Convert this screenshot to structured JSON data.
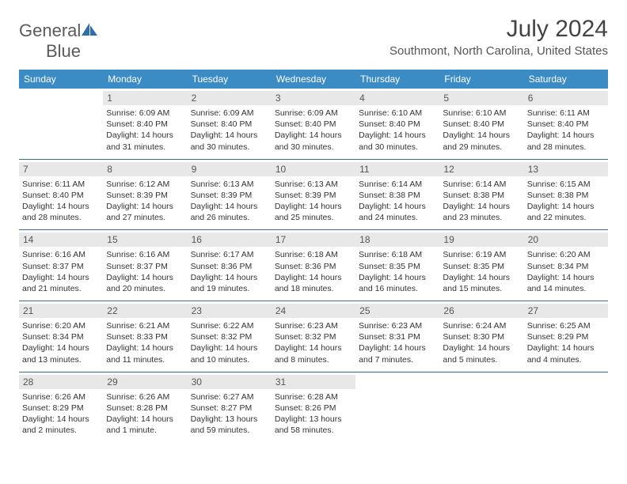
{
  "logo": {
    "text1": "General",
    "text2": "Blue"
  },
  "title": "July 2024",
  "location": "Southmont, North Carolina, United States",
  "weekdays": [
    "Sunday",
    "Monday",
    "Tuesday",
    "Wednesday",
    "Thursday",
    "Friday",
    "Saturday"
  ],
  "colors": {
    "header_bg": "#3b8bc4",
    "header_text": "#ffffff",
    "week_border": "#3b6b8f",
    "daynum_bg": "#e8e8e8",
    "daynum_text": "#555555",
    "body_text": "#333333",
    "logo_blue": "#2d6fa8"
  },
  "typography": {
    "title_fontsize": 30,
    "location_fontsize": 15,
    "weekday_fontsize": 12,
    "daynum_fontsize": 12,
    "dayinfo_fontsize": 10.5
  },
  "weeks": [
    [
      {
        "n": "",
        "sr": "",
        "ss": "",
        "dl": ""
      },
      {
        "n": "1",
        "sr": "Sunrise: 6:09 AM",
        "ss": "Sunset: 8:40 PM",
        "dl": "Daylight: 14 hours and 31 minutes."
      },
      {
        "n": "2",
        "sr": "Sunrise: 6:09 AM",
        "ss": "Sunset: 8:40 PM",
        "dl": "Daylight: 14 hours and 30 minutes."
      },
      {
        "n": "3",
        "sr": "Sunrise: 6:09 AM",
        "ss": "Sunset: 8:40 PM",
        "dl": "Daylight: 14 hours and 30 minutes."
      },
      {
        "n": "4",
        "sr": "Sunrise: 6:10 AM",
        "ss": "Sunset: 8:40 PM",
        "dl": "Daylight: 14 hours and 30 minutes."
      },
      {
        "n": "5",
        "sr": "Sunrise: 6:10 AM",
        "ss": "Sunset: 8:40 PM",
        "dl": "Daylight: 14 hours and 29 minutes."
      },
      {
        "n": "6",
        "sr": "Sunrise: 6:11 AM",
        "ss": "Sunset: 8:40 PM",
        "dl": "Daylight: 14 hours and 28 minutes."
      }
    ],
    [
      {
        "n": "7",
        "sr": "Sunrise: 6:11 AM",
        "ss": "Sunset: 8:40 PM",
        "dl": "Daylight: 14 hours and 28 minutes."
      },
      {
        "n": "8",
        "sr": "Sunrise: 6:12 AM",
        "ss": "Sunset: 8:39 PM",
        "dl": "Daylight: 14 hours and 27 minutes."
      },
      {
        "n": "9",
        "sr": "Sunrise: 6:13 AM",
        "ss": "Sunset: 8:39 PM",
        "dl": "Daylight: 14 hours and 26 minutes."
      },
      {
        "n": "10",
        "sr": "Sunrise: 6:13 AM",
        "ss": "Sunset: 8:39 PM",
        "dl": "Daylight: 14 hours and 25 minutes."
      },
      {
        "n": "11",
        "sr": "Sunrise: 6:14 AM",
        "ss": "Sunset: 8:38 PM",
        "dl": "Daylight: 14 hours and 24 minutes."
      },
      {
        "n": "12",
        "sr": "Sunrise: 6:14 AM",
        "ss": "Sunset: 8:38 PM",
        "dl": "Daylight: 14 hours and 23 minutes."
      },
      {
        "n": "13",
        "sr": "Sunrise: 6:15 AM",
        "ss": "Sunset: 8:38 PM",
        "dl": "Daylight: 14 hours and 22 minutes."
      }
    ],
    [
      {
        "n": "14",
        "sr": "Sunrise: 6:16 AM",
        "ss": "Sunset: 8:37 PM",
        "dl": "Daylight: 14 hours and 21 minutes."
      },
      {
        "n": "15",
        "sr": "Sunrise: 6:16 AM",
        "ss": "Sunset: 8:37 PM",
        "dl": "Daylight: 14 hours and 20 minutes."
      },
      {
        "n": "16",
        "sr": "Sunrise: 6:17 AM",
        "ss": "Sunset: 8:36 PM",
        "dl": "Daylight: 14 hours and 19 minutes."
      },
      {
        "n": "17",
        "sr": "Sunrise: 6:18 AM",
        "ss": "Sunset: 8:36 PM",
        "dl": "Daylight: 14 hours and 18 minutes."
      },
      {
        "n": "18",
        "sr": "Sunrise: 6:18 AM",
        "ss": "Sunset: 8:35 PM",
        "dl": "Daylight: 14 hours and 16 minutes."
      },
      {
        "n": "19",
        "sr": "Sunrise: 6:19 AM",
        "ss": "Sunset: 8:35 PM",
        "dl": "Daylight: 14 hours and 15 minutes."
      },
      {
        "n": "20",
        "sr": "Sunrise: 6:20 AM",
        "ss": "Sunset: 8:34 PM",
        "dl": "Daylight: 14 hours and 14 minutes."
      }
    ],
    [
      {
        "n": "21",
        "sr": "Sunrise: 6:20 AM",
        "ss": "Sunset: 8:34 PM",
        "dl": "Daylight: 14 hours and 13 minutes."
      },
      {
        "n": "22",
        "sr": "Sunrise: 6:21 AM",
        "ss": "Sunset: 8:33 PM",
        "dl": "Daylight: 14 hours and 11 minutes."
      },
      {
        "n": "23",
        "sr": "Sunrise: 6:22 AM",
        "ss": "Sunset: 8:32 PM",
        "dl": "Daylight: 14 hours and 10 minutes."
      },
      {
        "n": "24",
        "sr": "Sunrise: 6:23 AM",
        "ss": "Sunset: 8:32 PM",
        "dl": "Daylight: 14 hours and 8 minutes."
      },
      {
        "n": "25",
        "sr": "Sunrise: 6:23 AM",
        "ss": "Sunset: 8:31 PM",
        "dl": "Daylight: 14 hours and 7 minutes."
      },
      {
        "n": "26",
        "sr": "Sunrise: 6:24 AM",
        "ss": "Sunset: 8:30 PM",
        "dl": "Daylight: 14 hours and 5 minutes."
      },
      {
        "n": "27",
        "sr": "Sunrise: 6:25 AM",
        "ss": "Sunset: 8:29 PM",
        "dl": "Daylight: 14 hours and 4 minutes."
      }
    ],
    [
      {
        "n": "28",
        "sr": "Sunrise: 6:26 AM",
        "ss": "Sunset: 8:29 PM",
        "dl": "Daylight: 14 hours and 2 minutes."
      },
      {
        "n": "29",
        "sr": "Sunrise: 6:26 AM",
        "ss": "Sunset: 8:28 PM",
        "dl": "Daylight: 14 hours and 1 minute."
      },
      {
        "n": "30",
        "sr": "Sunrise: 6:27 AM",
        "ss": "Sunset: 8:27 PM",
        "dl": "Daylight: 13 hours and 59 minutes."
      },
      {
        "n": "31",
        "sr": "Sunrise: 6:28 AM",
        "ss": "Sunset: 8:26 PM",
        "dl": "Daylight: 13 hours and 58 minutes."
      },
      {
        "n": "",
        "sr": "",
        "ss": "",
        "dl": ""
      },
      {
        "n": "",
        "sr": "",
        "ss": "",
        "dl": ""
      },
      {
        "n": "",
        "sr": "",
        "ss": "",
        "dl": ""
      }
    ]
  ]
}
